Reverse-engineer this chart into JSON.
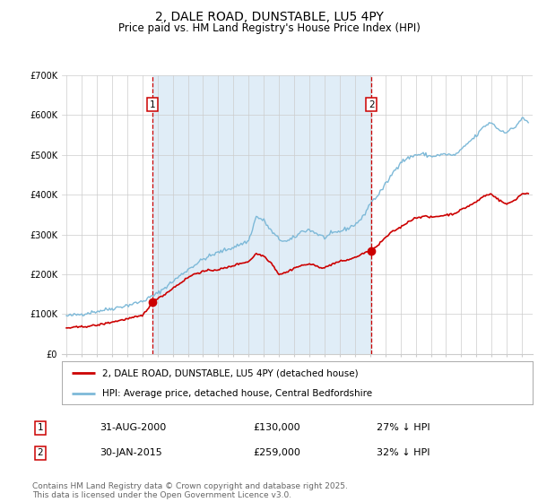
{
  "title": "2, DALE ROAD, DUNSTABLE, LU5 4PY",
  "subtitle": "Price paid vs. HM Land Registry's House Price Index (HPI)",
  "ylim": [
    0,
    700000
  ],
  "yticks": [
    0,
    100000,
    200000,
    300000,
    400000,
    500000,
    600000,
    700000
  ],
  "ytick_labels": [
    "£0",
    "£100K",
    "£200K",
    "£300K",
    "£400K",
    "£500K",
    "£600K",
    "£700K"
  ],
  "xlim_start": 1994.7,
  "xlim_end": 2025.7,
  "marker1_date": 2000.667,
  "marker1_price": 130000,
  "marker1_label": "31-AUG-2000",
  "marker1_price_label": "£130,000",
  "marker1_hpi_label": "27% ↓ HPI",
  "marker2_date": 2015.083,
  "marker2_price": 259000,
  "marker2_label": "30-JAN-2015",
  "marker2_price_label": "£259,000",
  "marker2_hpi_label": "32% ↓ HPI",
  "line1_color": "#cc0000",
  "line2_color": "#7db9d8",
  "shaded_region_color": "#e0edf7",
  "grid_color": "#cccccc",
  "background_color": "#ffffff",
  "legend1_label": "2, DALE ROAD, DUNSTABLE, LU5 4PY (detached house)",
  "legend2_label": "HPI: Average price, detached house, Central Bedfordshire",
  "footer": "Contains HM Land Registry data © Crown copyright and database right 2025.\nThis data is licensed under the Open Government Licence v3.0.",
  "title_fontsize": 10,
  "subtitle_fontsize": 8.5,
  "tick_fontsize": 7,
  "legend_fontsize": 7.5,
  "footer_fontsize": 6.5
}
